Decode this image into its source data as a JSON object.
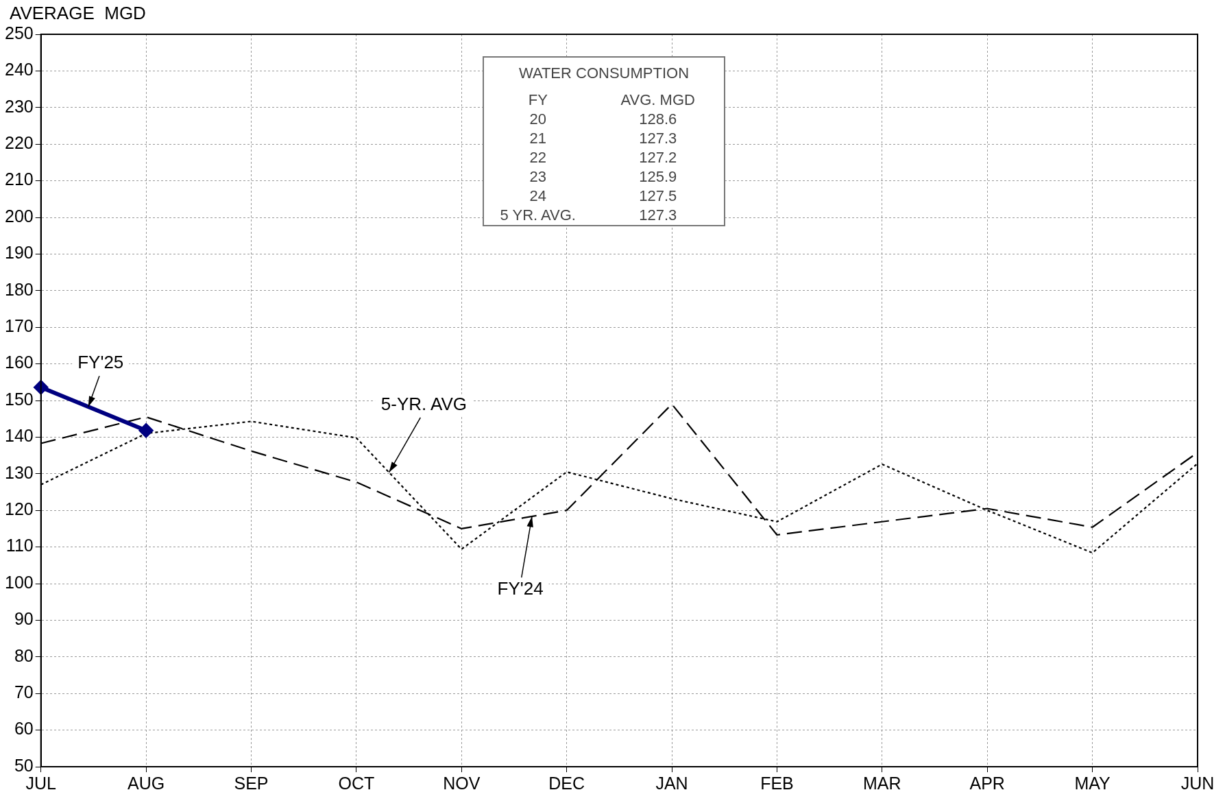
{
  "chart_data": {
    "type": "line",
    "ylabel": "AVERAGE  MGD",
    "categories": [
      "JUL",
      "AUG",
      "SEP",
      "OCT",
      "NOV",
      "DEC",
      "JAN",
      "FEB",
      "MAR",
      "APR",
      "MAY",
      "JUN"
    ],
    "series": [
      {
        "name": "FY'25",
        "color": "#000080",
        "marker": "diamond",
        "line_style": "solid",
        "values": [
          153.6,
          141.8,
          null,
          null,
          null,
          null,
          null,
          null,
          null,
          null,
          null,
          null
        ]
      },
      {
        "name": "5-YR. AVG",
        "color": "#000000",
        "marker": "none",
        "line_style": "dotted",
        "values": [
          127,
          141,
          144.3,
          139.8,
          109.4,
          130.5,
          123.2,
          116.9,
          132.6,
          120,
          108.4,
          132.8
        ]
      },
      {
        "name": "FY'24",
        "color": "#000000",
        "marker": "none",
        "line_style": "dashed",
        "values": [
          138.3,
          145.5,
          136.2,
          127.7,
          115,
          120,
          149,
          113.3,
          116.9,
          120.5,
          115.4,
          135.8
        ]
      }
    ],
    "ylim": [
      50,
      250
    ],
    "yticks": [
      50,
      60,
      70,
      80,
      90,
      100,
      110,
      120,
      130,
      140,
      150,
      160,
      170,
      180,
      190,
      200,
      210,
      220,
      230,
      240,
      250
    ],
    "grid": true,
    "legend": false,
    "annotations": [
      "WATER CONSUMPTION",
      "FY",
      "AVG. MGD",
      "20",
      "128.6",
      "21",
      "127.3",
      "22",
      "127.2",
      "23",
      "125.9",
      "24",
      "127.5",
      "5 YR. AVG.",
      "127.3"
    ]
  }
}
